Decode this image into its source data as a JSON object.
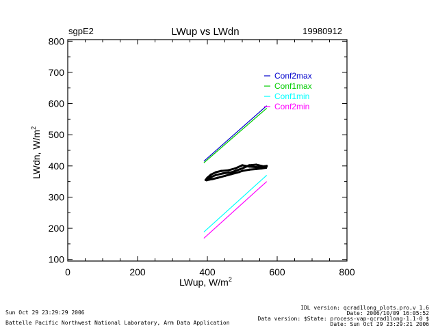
{
  "chart_data": {
    "type": "line",
    "site": "sgpE2",
    "title": "LWup vs LWdn",
    "date": "19980912",
    "xlabel": "LWup, W/m",
    "xlabel_sup": "2",
    "ylabel": "LWdn, W/m",
    "ylabel_sup": "2",
    "xlim": [
      0,
      800
    ],
    "ylim": [
      95,
      805
    ],
    "x_ticks": [
      0,
      200,
      400,
      600,
      800
    ],
    "y_ticks": [
      100,
      200,
      300,
      400,
      500,
      600,
      700,
      800
    ],
    "series": [
      {
        "name": "Conf2max",
        "color": "#0000cc",
        "x": [
          390,
          570
        ],
        "y": [
          415,
          593
        ]
      },
      {
        "name": "Conf1max",
        "color": "#00cc00",
        "x": [
          390,
          570
        ],
        "y": [
          410,
          585
        ]
      },
      {
        "name": "Conf1min",
        "color": "#00ffff",
        "x": [
          390,
          570
        ],
        "y": [
          188,
          370
        ]
      },
      {
        "name": "Conf2min",
        "color": "#ff00ff",
        "x": [
          390,
          570
        ],
        "y": [
          168,
          350
        ]
      }
    ],
    "observations": {
      "name": "observations",
      "color": "#000000",
      "x": [
        395,
        400,
        410,
        425,
        440,
        460,
        480,
        500,
        520,
        540,
        555,
        565,
        570,
        568,
        555,
        540,
        520,
        500,
        490,
        470,
        450,
        430,
        415,
        405,
        398,
        400,
        410,
        425,
        445,
        470,
        500,
        520,
        540,
        555,
        565
      ],
      "y": [
        355,
        362,
        372,
        380,
        384,
        386,
        392,
        402,
        398,
        396,
        397,
        399,
        400,
        394,
        392,
        390,
        388,
        384,
        380,
        374,
        368,
        362,
        358,
        356,
        354,
        357,
        364,
        371,
        376,
        380,
        392,
        402,
        404,
        400,
        398
      ]
    }
  },
  "footer": {
    "left_line1": "Sun Oct 29 23:29:29 2006",
    "left_line2": "Battelle Pacific Northwest National Laboratory, Arm Data Application",
    "right_line1": "IDL version: qcrad1long_plots.pro,v 1.6",
    "right_line2": "Date: 2006/10/09 16:05:52",
    "right_line3": "Data version: $State: process-vap-qcrad1long-1.1-0 $",
    "right_line4": "Date: Sun Oct 29 23:29:21 2006"
  }
}
